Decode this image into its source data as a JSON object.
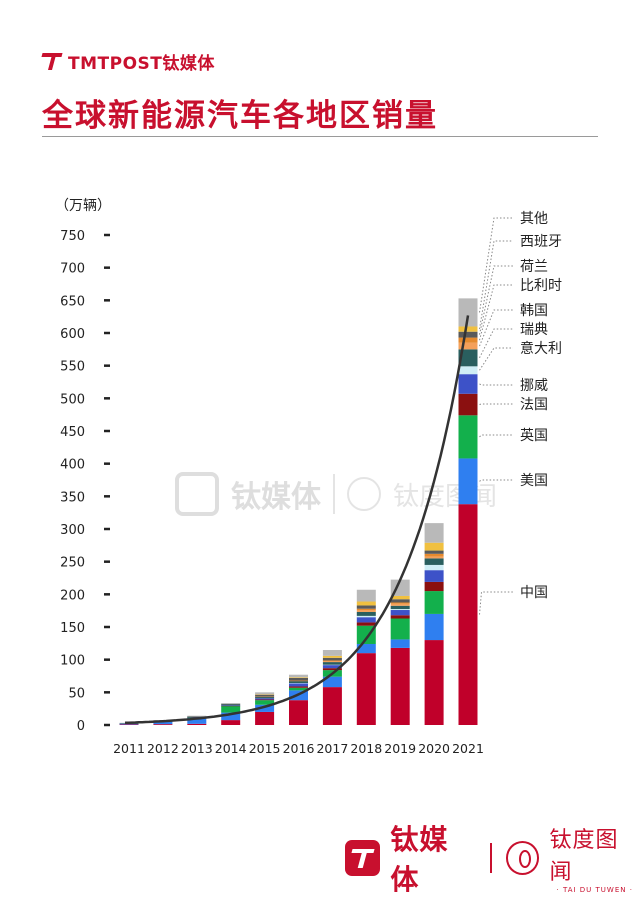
{
  "brand": {
    "name": "TMTPOST钛媒体",
    "footer_name": "钛媒体",
    "footer_alt_name": "钛度图闻",
    "footer_alt_sub": "· TAI DU TUWEN ·"
  },
  "watermark": {
    "name": "钛媒体",
    "alt_name": "钛度图闻",
    "alt_sub": "TAI DU TUWEN"
  },
  "colors": {
    "brand": "#c8102e",
    "中国": "#c0002a",
    "美国": "#2f7ff0",
    "英国": "#13b04c",
    "法国": "#8b1010",
    "挪威": "#3d52c8",
    "意大利": "#cfeef6",
    "瑞典": "#2a5f5f",
    "韩国": "#f4a05a",
    "比利时": "#e58a2e",
    "荷兰": "#5a5a5a",
    "西班牙": "#f0c040",
    "其他": "#b9b9b9",
    "trend": "#333333"
  },
  "chart_data": {
    "type": "bar",
    "stacked": true,
    "title": "全球新能源汽车各地区销量",
    "ylabel": "（万辆）",
    "ylim": [
      0,
      750
    ],
    "yticks": [
      0,
      50,
      100,
      150,
      200,
      250,
      300,
      350,
      400,
      450,
      500,
      550,
      600,
      650,
      700,
      750
    ],
    "categories": [
      "2011",
      "2012",
      "2013",
      "2014",
      "2015",
      "2016",
      "2017",
      "2018",
      "2019",
      "2020",
      "2021"
    ],
    "series": [
      {
        "name": "中国",
        "values": [
          0.8,
          1.3,
          1.8,
          7.5,
          20,
          38,
          58,
          110,
          118,
          130,
          338
        ]
      },
      {
        "name": "美国",
        "values": [
          1.8,
          4.5,
          9.5,
          11.5,
          11,
          15,
          16,
          14,
          13,
          40,
          70
        ]
      },
      {
        "name": "英国",
        "values": [
          0.1,
          0.2,
          0.3,
          10,
          7,
          4,
          10,
          28,
          32,
          35,
          66
        ]
      },
      {
        "name": "法国",
        "values": [
          0.2,
          0.3,
          0.5,
          0.5,
          1,
          2,
          3,
          5,
          5,
          14,
          33
        ]
      },
      {
        "name": "挪威",
        "values": [
          0.2,
          0.3,
          0.5,
          0.5,
          2,
          5,
          5,
          8,
          8,
          18,
          30
        ]
      },
      {
        "name": "意大利",
        "values": [
          0,
          0,
          0,
          0,
          0,
          0.3,
          0.3,
          2,
          1.5,
          8,
          12
        ]
      },
      {
        "name": "瑞典",
        "values": [
          0,
          0,
          0.1,
          1.5,
          2,
          3,
          4,
          6,
          5,
          10,
          26
        ]
      },
      {
        "name": "韩国",
        "values": [
          0,
          0,
          0,
          0,
          0.5,
          0.5,
          2,
          3,
          3,
          3,
          10
        ]
      },
      {
        "name": "比利时",
        "values": [
          0,
          0,
          0,
          0,
          0,
          0.2,
          0.5,
          2,
          2,
          4,
          8
        ]
      },
      {
        "name": "荷兰",
        "values": [
          0,
          0.3,
          0.5,
          1,
          3,
          4,
          4,
          5,
          5,
          5,
          9
        ]
      },
      {
        "name": "西班牙",
        "values": [
          0,
          0,
          0,
          0,
          0.5,
          1,
          3,
          6,
          5,
          12,
          8
        ]
      },
      {
        "name": "其他",
        "values": [
          0.2,
          0.6,
          1,
          1,
          3,
          4,
          9,
          18,
          25,
          30,
          43
        ]
      }
    ],
    "trend_line": true,
    "legend_placement": "right, labels with dotted leader lines"
  }
}
